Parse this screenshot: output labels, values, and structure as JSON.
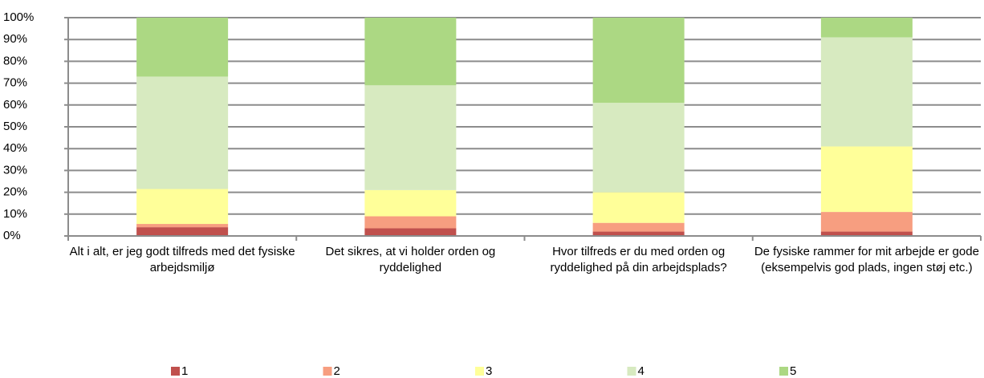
{
  "chart_data": {
    "type": "stacked_bar_100",
    "categories": [
      "Alt i alt, er jeg godt tilfreds med det fysiske arbejdsmiljø",
      "Det sikres, at vi holder orden og ryddelighed",
      "Hvor tilfreds er du med orden og ryddelighed på din arbejdsplads?",
      "De fysiske rammer for mit arbejde er gode (eksempelvis god plads, ingen støj etc.)"
    ],
    "series": [
      {
        "name": "1",
        "color": "#c0504d",
        "values": [
          4,
          3.5,
          2,
          2
        ]
      },
      {
        "name": "2",
        "color": "#f79e80",
        "values": [
          1.5,
          5.5,
          4,
          9
        ]
      },
      {
        "name": "3",
        "color": "#ffff99",
        "values": [
          16,
          12,
          14,
          30
        ]
      },
      {
        "name": "4",
        "color": "#d7eac0",
        "values": [
          51.5,
          48,
          41,
          50
        ]
      },
      {
        "name": "5",
        "color": "#acd883",
        "values": [
          27,
          31,
          39,
          9
        ]
      }
    ],
    "ylim": [
      0,
      100
    ],
    "yticks": [
      {
        "value": 0,
        "label": "0%"
      },
      {
        "value": 10,
        "label": "10%"
      },
      {
        "value": 20,
        "label": "20%"
      },
      {
        "value": 30,
        "label": "30%"
      },
      {
        "value": 40,
        "label": "40%"
      },
      {
        "value": 50,
        "label": "50%"
      },
      {
        "value": 60,
        "label": "60%"
      },
      {
        "value": 70,
        "label": "70%"
      },
      {
        "value": 80,
        "label": "80%"
      },
      {
        "value": 90,
        "label": "90%"
      },
      {
        "value": 100,
        "label": "100%"
      }
    ],
    "grid": true,
    "legend": "bottom"
  }
}
